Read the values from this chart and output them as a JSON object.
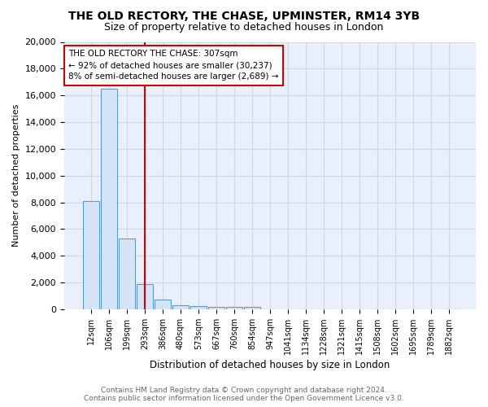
{
  "title": "THE OLD RECTORY, THE CHASE, UPMINSTER, RM14 3YB",
  "subtitle": "Size of property relative to detached houses in London",
  "xlabel": "Distribution of detached houses by size in London",
  "ylabel": "Number of detached properties",
  "bin_labels": [
    "12sqm",
    "106sqm",
    "199sqm",
    "293sqm",
    "386sqm",
    "480sqm",
    "573sqm",
    "667sqm",
    "760sqm",
    "854sqm",
    "947sqm",
    "1041sqm",
    "1134sqm",
    "1228sqm",
    "1321sqm",
    "1415sqm",
    "1508sqm",
    "1602sqm",
    "1695sqm",
    "1789sqm",
    "1882sqm"
  ],
  "bar_heights": [
    8100,
    16500,
    5300,
    1850,
    700,
    300,
    240,
    200,
    190,
    170,
    0,
    0,
    0,
    0,
    0,
    0,
    0,
    0,
    0,
    0,
    0
  ],
  "bar_color": "#d6e4f7",
  "bar_edge_color": "#5b9bd5",
  "red_line_x": 3.0,
  "red_line_label": "THE OLD RECTORY THE CHASE: 307sqm\n← 92% of detached houses are smaller (30,237)\n8% of semi-detached houses are larger (2,689) →",
  "annotation_box_color": "#ffffff",
  "annotation_box_edge": "#cc0000",
  "ylim": [
    0,
    20000
  ],
  "yticks": [
    0,
    2000,
    4000,
    6000,
    8000,
    10000,
    12000,
    14000,
    16000,
    18000,
    20000
  ],
  "footer_line1": "Contains HM Land Registry data © Crown copyright and database right 2024.",
  "footer_line2": "Contains public sector information licensed under the Open Government Licence v3.0.",
  "background_color": "#ffffff",
  "grid_color": "#d0d8e8",
  "ax_bg_color": "#eaf0fb"
}
